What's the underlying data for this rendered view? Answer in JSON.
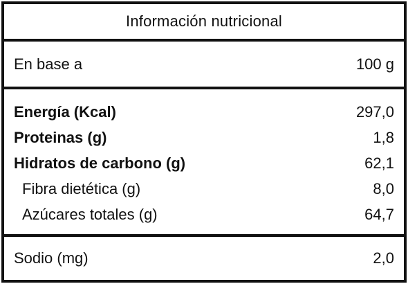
{
  "title": "Información nutricional",
  "base": {
    "label": "En base a",
    "value": "100 g"
  },
  "nutrients": [
    {
      "name": "Energía (Kcal)",
      "value": "297,0",
      "bold": true,
      "sub": false
    },
    {
      "name": "Proteinas (g)",
      "value": "1,8",
      "bold": true,
      "sub": false
    },
    {
      "name": "Hidratos de carbono (g)",
      "value": "62,1",
      "bold": true,
      "sub": false
    },
    {
      "name": "Fibra dietética (g)",
      "value": "8,0",
      "bold": false,
      "sub": true
    },
    {
      "name": "Azúcares totales (g)",
      "value": "64,7",
      "bold": false,
      "sub": true
    }
  ],
  "sodium": {
    "label": "Sodio (mg)",
    "value": "2,0"
  }
}
